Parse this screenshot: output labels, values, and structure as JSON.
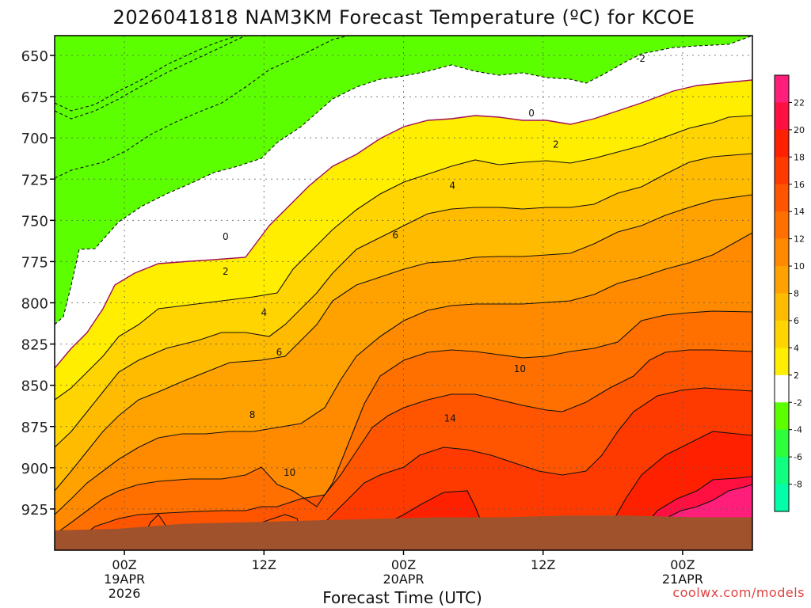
{
  "chart_data": {
    "type": "contour-cross-section",
    "title": "2026041818 NAM3KM Forecast Temperature (ºC) for KCOE",
    "xlabel": "Forecast Time (UTC)",
    "credit": "coolwx.com/models",
    "x_ticks": [
      {
        "hour": 6,
        "labels": [
          "00Z",
          "19APR",
          "2026"
        ]
      },
      {
        "hour": 18,
        "labels": [
          "12Z"
        ]
      },
      {
        "hour": 30,
        "labels": [
          "00Z",
          "20APR"
        ]
      },
      {
        "hour": 42,
        "labels": [
          "12Z"
        ]
      },
      {
        "hour": 54,
        "labels": [
          "00Z",
          "21APR"
        ]
      }
    ],
    "xlim": [
      0,
      60
    ],
    "y_ticks": [
      "650",
      "675",
      "700",
      "725",
      "750",
      "775",
      "800",
      "825",
      "850",
      "875",
      "900",
      "925"
    ],
    "y_tick_values": [
      650,
      675,
      700,
      725,
      750,
      775,
      800,
      825,
      850,
      875,
      900,
      925
    ],
    "ylim": [
      638,
      950
    ],
    "ground_pressure_hpa": [
      938,
      937,
      934,
      933,
      932,
      931,
      930,
      930,
      929,
      929,
      930,
      930
    ],
    "ground_hours": [
      0,
      5.5,
      11,
      16.5,
      22,
      27.5,
      33,
      38.5,
      44,
      49.5,
      55,
      60
    ],
    "colorbar": {
      "levels": [
        "22",
        "20",
        "18",
        "16",
        "14",
        "12",
        "10",
        "8",
        "6",
        "4",
        "2",
        "-2",
        "-4",
        "-6",
        "-8"
      ],
      "colors": [
        "#ff1e7a",
        "#ff1040",
        "#ff2000",
        "#ff3a00",
        "#ff5500",
        "#ff7000",
        "#ff8a00",
        "#ffa200",
        "#ffbb00",
        "#ffd400",
        "#ffee00",
        "#ffffff",
        "#5cff00",
        "#2eff3c",
        "#10ff80",
        "#00ffa8"
      ]
    },
    "contour_labels": [
      {
        "text": "-2",
        "hour": 50.4,
        "p": 652
      },
      {
        "text": "0",
        "hour": 41.0,
        "p": 685
      },
      {
        "text": "0",
        "hour": 14.7,
        "p": 760
      },
      {
        "text": "2",
        "hour": 43.1,
        "p": 704
      },
      {
        "text": "2",
        "hour": 14.7,
        "p": 781
      },
      {
        "text": "4",
        "hour": 34.2,
        "p": 729
      },
      {
        "text": "4",
        "hour": 18.0,
        "p": 806
      },
      {
        "text": "6",
        "hour": 29.3,
        "p": 759
      },
      {
        "text": "6",
        "hour": 19.3,
        "p": 830
      },
      {
        "text": "8",
        "hour": 17.0,
        "p": 868
      },
      {
        "text": "10",
        "hour": 40.0,
        "p": 840
      },
      {
        "text": "10",
        "hour": 20.2,
        "p": 903
      },
      {
        "text": "14",
        "hour": 34.0,
        "p": 870
      }
    ]
  }
}
